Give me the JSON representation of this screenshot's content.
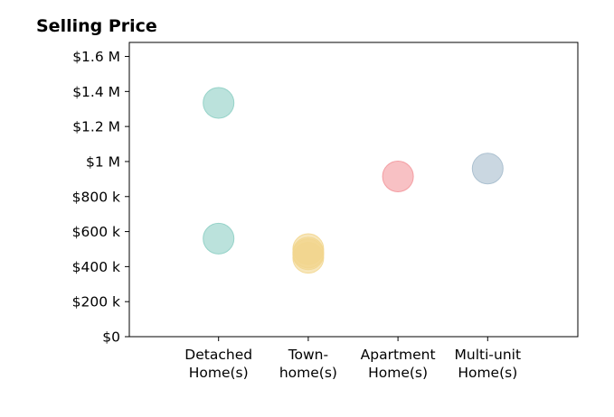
{
  "chart_data": {
    "type": "scatter",
    "title": "Selling Price",
    "xlabel": "",
    "ylabel": "",
    "categories": [
      [
        "Detached",
        "Home(s)"
      ],
      [
        "Town-",
        "home(s)"
      ],
      [
        "Apartment",
        "Home(s)"
      ],
      [
        "Multi-unit",
        "Home(s)"
      ]
    ],
    "ylim": [
      0,
      1680000
    ],
    "y_ticks": [
      {
        "value": 0,
        "label": "$0"
      },
      {
        "value": 200000,
        "label": "$200 k"
      },
      {
        "value": 400000,
        "label": "$400 k"
      },
      {
        "value": 600000,
        "label": "$600 k"
      },
      {
        "value": 800000,
        "label": "$800 k"
      },
      {
        "value": 1000000,
        "label": "$1 M"
      },
      {
        "value": 1200000,
        "label": "$1.2 M"
      },
      {
        "value": 1400000,
        "label": "$1.4 M"
      },
      {
        "value": 1600000,
        "label": "$1.6 M"
      }
    ],
    "grid": false,
    "points": [
      {
        "category": 0,
        "y": 1335000,
        "color": "#8ecfc4"
      },
      {
        "category": 0,
        "y": 560000,
        "color": "#8ecfc4"
      },
      {
        "category": 1,
        "y": 500000,
        "color": "#f2d68e"
      },
      {
        "category": 1,
        "y": 480000,
        "color": "#f2d68e"
      },
      {
        "category": 1,
        "y": 470000,
        "color": "#f2d68e"
      },
      {
        "category": 1,
        "y": 450000,
        "color": "#f2d68e"
      },
      {
        "category": 2,
        "y": 915000,
        "color": "#f3979c"
      },
      {
        "category": 3,
        "y": 960000,
        "color": "#a6bccd"
      }
    ]
  }
}
